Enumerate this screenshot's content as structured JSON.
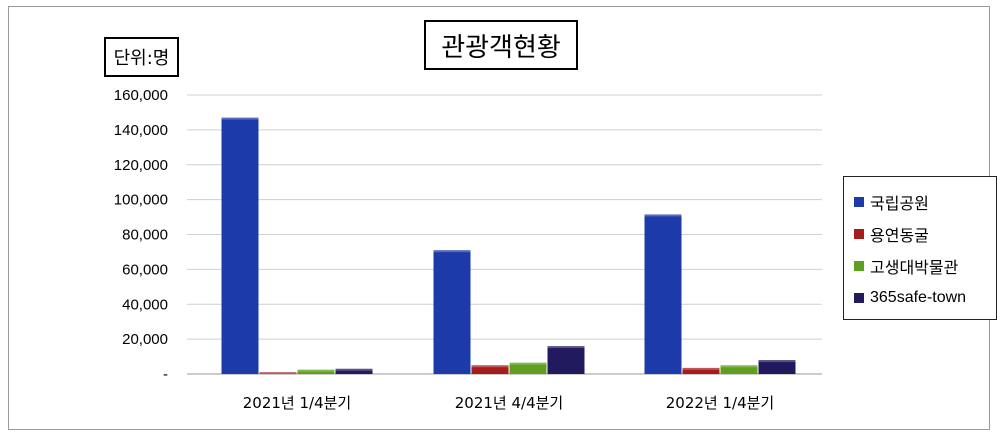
{
  "title": "관광객현황",
  "unit_label": "단위:명",
  "chart_data": {
    "type": "bar",
    "categories": [
      "2021년 1/4분기",
      "2021년 4/4분기",
      "2022년 1/4분기"
    ],
    "series": [
      {
        "name": "국립공원",
        "values": [
          147000,
          71000,
          91500
        ],
        "color": "#1c3aa9"
      },
      {
        "name": "용연동굴",
        "values": [
          1000,
          5000,
          3500
        ],
        "color": "#a61c1c"
      },
      {
        "name": "고생대박물관",
        "values": [
          2500,
          6500,
          5000
        ],
        "color": "#5ea01e"
      },
      {
        "name": "365safe-town",
        "values": [
          3000,
          16000,
          8000
        ],
        "color": "#221a5e"
      }
    ],
    "y_ticks": [
      "-",
      "20,000",
      "40,000",
      "60,000",
      "80,000",
      "100,000",
      "120,000",
      "140,000",
      "160,000"
    ],
    "ylim": [
      0,
      160000
    ],
    "grid": true,
    "legend_position": "right"
  }
}
